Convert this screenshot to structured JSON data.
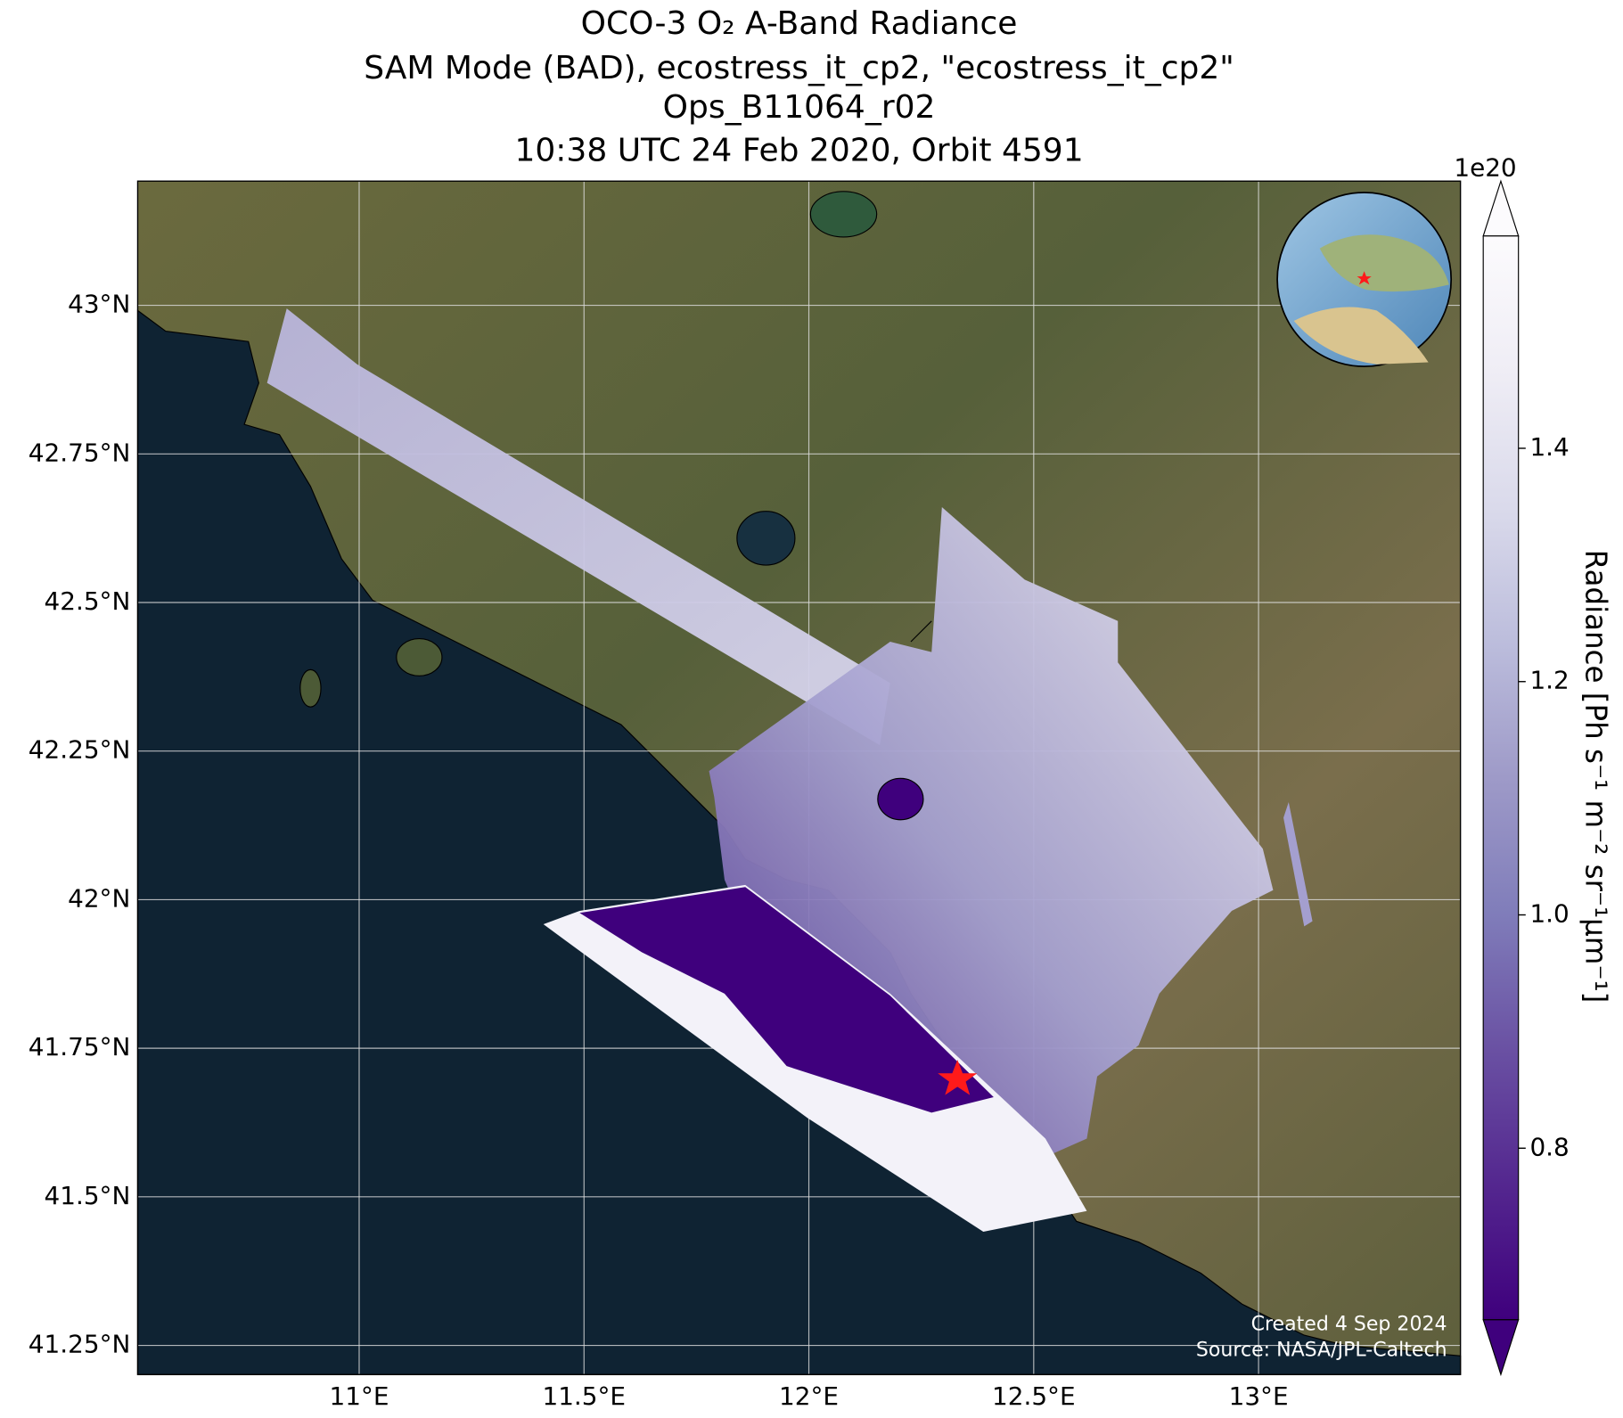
{
  "chart_data": {
    "type": "map",
    "title_lines": [
      "OCO-3 O₂ A-Band Radiance",
      "SAM Mode (BAD), ecostress_it_cp2, \"ecostress_it_cp2\"",
      "Ops_B11064_r02",
      "10:38 UTC 24 Feb 2020, Orbit 4591"
    ],
    "xlim": [
      10.5075,
      13.449
    ],
    "ylim": [
      41.201,
      43.209
    ],
    "xticks": [
      {
        "value": 11,
        "label": "11°E"
      },
      {
        "value": 11.5,
        "label": "11.5°E"
      },
      {
        "value": 12,
        "label": "12°E"
      },
      {
        "value": 12.5,
        "label": "12.5°E"
      },
      {
        "value": 13,
        "label": "13°E"
      }
    ],
    "yticks": [
      {
        "value": 41.25,
        "label": "41.25°N"
      },
      {
        "value": 41.5,
        "label": "41.5°N"
      },
      {
        "value": 41.75,
        "label": "41.75°N"
      },
      {
        "value": 42,
        "label": "42°N"
      },
      {
        "value": 42.25,
        "label": "42.25°N"
      },
      {
        "value": 42.5,
        "label": "42.5°N"
      },
      {
        "value": 42.75,
        "label": "42.75°N"
      },
      {
        "value": 43,
        "label": "43°N"
      }
    ],
    "grid": true,
    "colorbar": {
      "label": "Radiance [Ph s⁻¹ m⁻² sr⁻¹μm⁻¹]",
      "exponent": "1e20",
      "clim": [
        0.653,
        1.582
      ],
      "ticks": [
        0.8,
        {
          "value": 1.0,
          "label": "1.0"
        },
        1.2,
        1.4
      ],
      "colormap": [
        "#3f007d",
        "#54278f",
        "#6a51a3",
        "#807dba",
        "#9e9ac8",
        "#bcbddc",
        "#dadaeb",
        "#efedf5",
        "#fcfbfd"
      ]
    },
    "credits": [
      "Created 4 Sep 2024",
      "Source: NASA/JPL-Caltech"
    ]
  }
}
